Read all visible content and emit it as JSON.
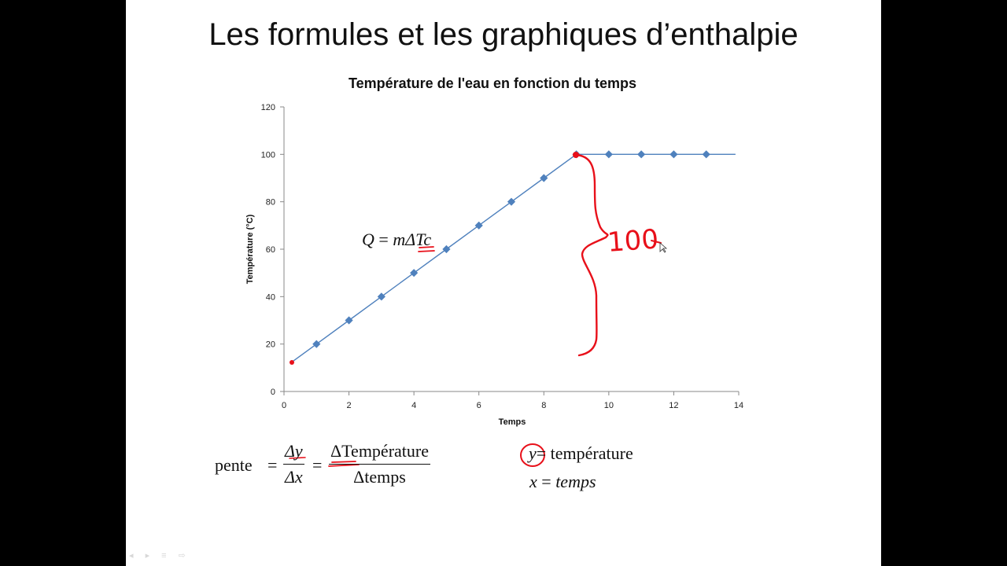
{
  "slide": {
    "title": "Les formules et les graphiques d’enthalpie"
  },
  "chart_data": {
    "type": "line",
    "title": "Température de l'eau en fonction du temps",
    "xlabel": "Temps",
    "ylabel": "Température (°C)",
    "xlim": [
      0,
      14
    ],
    "ylim": [
      0,
      120
    ],
    "xticks": [
      0,
      2,
      4,
      6,
      8,
      10,
      12,
      14
    ],
    "yticks": [
      0,
      20,
      40,
      60,
      80,
      100,
      120
    ],
    "grid": false,
    "legend": "none",
    "series": [
      {
        "color": "#4f81bd",
        "x": [
          0.25,
          1,
          2,
          3,
          4,
          5,
          6,
          7,
          8,
          9,
          10,
          11,
          12,
          13,
          13.9
        ],
        "y": [
          12.5,
          20,
          30,
          40,
          50,
          60,
          70,
          80,
          90,
          100,
          100,
          100,
          100,
          100,
          100
        ],
        "markers": [
          false,
          true,
          true,
          true,
          true,
          true,
          true,
          true,
          true,
          true,
          true,
          true,
          true,
          true,
          false
        ]
      }
    ]
  },
  "formulas": {
    "q_lhs": "Q",
    "q_eq": " = ",
    "q_rhs": "mΔTc",
    "pente_label": "pente",
    "eq1": "=",
    "eq2": "=",
    "frac1_num": "Δy",
    "frac1_den": "Δx",
    "frac2_num": "ΔTempérature",
    "frac2_den": "Δtemps",
    "y_var": "y",
    "y_def": "= température",
    "x_var": "x",
    "x_eq": " = ",
    "x_def": "temps"
  },
  "annotations": {
    "ink_color": "#e8101a",
    "handwritten_value": "100"
  }
}
